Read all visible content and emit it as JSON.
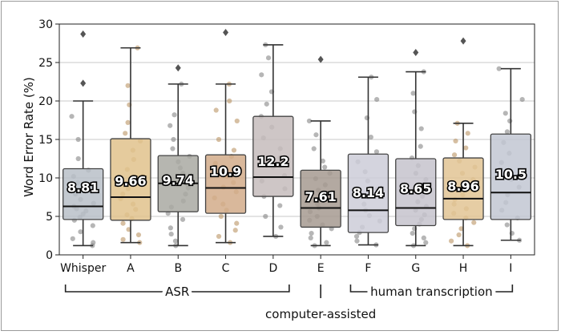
{
  "chart_data": {
    "type": "box",
    "ylabel": "Word Error Rate (%)",
    "ylim": [
      0,
      30
    ],
    "yticks": [
      0,
      5,
      10,
      15,
      20,
      25,
      30
    ],
    "grid": true,
    "groups": [
      {
        "label": "ASR",
        "members": [
          "A",
          "B",
          "C",
          "D"
        ]
      },
      {
        "label": "computer-assisted",
        "members": [
          "E"
        ]
      },
      {
        "label": "human transcription",
        "members": [
          "F",
          "G",
          "H",
          "I"
        ]
      }
    ],
    "boxes": [
      {
        "category": "Whisper",
        "mean_label": "8.81",
        "color": "#b8c0c8",
        "q1": 4.6,
        "median": 6.3,
        "q3": 11.2,
        "whislo": 1.2,
        "whishi": 20.0,
        "outliers": [
          22.3,
          28.7
        ],
        "points": [
          1.2,
          1.6,
          2.1,
          3.0,
          3.8,
          4.5,
          4.9,
          5.3,
          5.7,
          6.0,
          6.3,
          6.7,
          7.2,
          7.9,
          8.6,
          9.4,
          10.2,
          11.0,
          12.5,
          15.0,
          18.0
        ]
      },
      {
        "category": "A",
        "mean_label": "9.66",
        "color": "#e0c28c",
        "q1": 4.5,
        "median": 7.5,
        "q3": 15.1,
        "whislo": 1.6,
        "whishi": 26.9,
        "outliers": [],
        "points": [
          1.6,
          2.0,
          2.6,
          3.3,
          4.1,
          4.7,
          5.2,
          5.9,
          6.6,
          7.3,
          7.9,
          8.6,
          9.4,
          10.2,
          11.1,
          12.4,
          13.6,
          14.8,
          15.8,
          17.2,
          19.5,
          22.0,
          26.9
        ]
      },
      {
        "category": "B",
        "mean_label": "9.74",
        "color": "#a9a9a2",
        "q1": 5.6,
        "median": 9.3,
        "q3": 12.9,
        "whislo": 1.2,
        "whishi": 22.2,
        "outliers": [
          24.3
        ],
        "points": [
          1.2,
          1.8,
          2.7,
          3.5,
          4.6,
          5.4,
          6.2,
          7.0,
          7.9,
          8.7,
          9.2,
          9.9,
          10.6,
          11.3,
          12.1,
          12.8,
          13.8,
          15.0,
          16.8,
          18.2,
          22.2
        ]
      },
      {
        "category": "C",
        "mean_label": "10.9",
        "color": "#d2ac8a",
        "q1": 5.4,
        "median": 8.7,
        "q3": 13.0,
        "whislo": 1.6,
        "whishi": 22.2,
        "outliers": [
          28.9
        ],
        "points": [
          1.6,
          2.4,
          3.2,
          4.1,
          5.0,
          5.8,
          6.6,
          7.4,
          8.2,
          8.8,
          9.4,
          10.2,
          11.0,
          11.9,
          12.8,
          13.6,
          15.0,
          17.4,
          18.8,
          20.0,
          22.2
        ]
      },
      {
        "category": "D",
        "mean_label": "12.2",
        "color": "#c6bcbc",
        "q1": 7.6,
        "median": 10.1,
        "q3": 18.0,
        "whislo": 2.4,
        "whishi": 27.3,
        "outliers": [],
        "points": [
          2.4,
          3.6,
          5.0,
          6.4,
          7.6,
          8.6,
          9.6,
          10.3,
          11.4,
          12.6,
          13.8,
          15.2,
          16.6,
          18.0,
          19.6,
          21.2,
          23.4,
          25.6,
          27.3
        ]
      },
      {
        "category": "E",
        "mean_label": "7.61",
        "color": "#a69a90",
        "q1": 3.6,
        "median": 6.1,
        "q3": 11.0,
        "whislo": 1.2,
        "whishi": 17.4,
        "outliers": [
          25.4
        ],
        "points": [
          1.2,
          1.6,
          2.2,
          2.8,
          3.4,
          3.9,
          4.5,
          5.0,
          5.6,
          6.1,
          6.6,
          7.2,
          7.8,
          8.4,
          9.1,
          9.9,
          10.6,
          11.4,
          12.2,
          13.8,
          15.6,
          17.4
        ]
      },
      {
        "category": "F",
        "mean_label": "8.14",
        "color": "#cdcdd8",
        "q1": 2.9,
        "median": 5.8,
        "q3": 13.1,
        "whislo": 1.3,
        "whishi": 23.1,
        "outliers": [],
        "points": [
          1.3,
          1.8,
          2.4,
          2.9,
          3.6,
          4.4,
          5.1,
          5.8,
          6.6,
          7.5,
          8.5,
          9.6,
          10.8,
          12.1,
          13.4,
          15.3,
          17.8,
          20.2,
          23.1
        ]
      },
      {
        "category": "G",
        "mean_label": "8.65",
        "color": "#c6c3cc",
        "q1": 3.8,
        "median": 6.1,
        "q3": 12.5,
        "whislo": 1.2,
        "whishi": 23.8,
        "outliers": [
          26.3
        ],
        "points": [
          1.2,
          1.6,
          2.2,
          2.8,
          3.4,
          4.0,
          4.6,
          5.2,
          5.8,
          6.3,
          6.9,
          7.6,
          8.3,
          9.0,
          9.8,
          10.6,
          11.6,
          12.6,
          14.1,
          16.4,
          18.6,
          21.0,
          23.8
        ]
      },
      {
        "category": "H",
        "mean_label": "8.96",
        "color": "#e2c494",
        "q1": 4.6,
        "median": 7.3,
        "q3": 12.6,
        "whislo": 1.2,
        "whishi": 17.1,
        "outliers": [
          27.8
        ],
        "points": [
          1.2,
          1.8,
          2.6,
          3.4,
          4.2,
          4.8,
          5.4,
          6.0,
          6.6,
          7.2,
          7.8,
          8.4,
          9.0,
          9.8,
          10.6,
          11.4,
          12.2,
          13.0,
          13.9,
          14.8,
          15.8,
          17.1
        ]
      },
      {
        "category": "I",
        "mean_label": "10.5",
        "color": "#c2c7d2",
        "q1": 4.6,
        "median": 8.1,
        "q3": 15.7,
        "whislo": 1.9,
        "whishi": 24.2,
        "outliers": [],
        "points": [
          1.9,
          2.8,
          3.9,
          4.8,
          5.8,
          6.8,
          7.8,
          8.8,
          9.8,
          10.8,
          12.0,
          13.2,
          14.6,
          16.0,
          17.4,
          18.4,
          20.2,
          24.2
        ]
      }
    ]
  }
}
